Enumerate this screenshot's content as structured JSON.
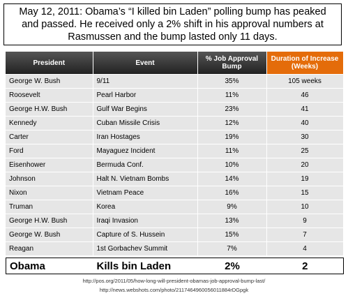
{
  "header": {
    "title": "May 12, 2011: Obama’s “I killed bin Laden” polling bump has peaked and passed. He received only a 2% shift in his approval numbers at Rasmussen and the bump lasted only 11 days."
  },
  "table": {
    "headers": [
      "President",
      "Event",
      "% Job Approval Bump",
      "Duration of Increase (Weeks)"
    ],
    "rows": [
      [
        "George W. Bush",
        "9/11",
        "35%",
        "105 weeks"
      ],
      [
        "Roosevelt",
        "Pearl Harbor",
        "11%",
        "46"
      ],
      [
        "George H.W. Bush",
        "Gulf War Begins",
        "23%",
        "41"
      ],
      [
        "Kennedy",
        "Cuban Missile Crisis",
        "12%",
        "40"
      ],
      [
        "Carter",
        "Iran Hostages",
        "19%",
        "30"
      ],
      [
        "Ford",
        "Mayaguez Incident",
        "11%",
        "25"
      ],
      [
        "Eisenhower",
        "Bermuda Conf.",
        "10%",
        "20"
      ],
      [
        "Johnson",
        "Halt N. Vietnam Bombs",
        "14%",
        "19"
      ],
      [
        "Nixon",
        "Vietnam Peace",
        "16%",
        "15"
      ],
      [
        "Truman",
        "Korea",
        "9%",
        "10"
      ],
      [
        "George H.W. Bush",
        "Iraqi Invasion",
        "13%",
        "9"
      ],
      [
        "George W. Bush",
        "Capture of S. Hussein",
        "15%",
        "7"
      ],
      [
        "Reagan",
        "1st Gorbachev Summit",
        "7%",
        "4"
      ]
    ],
    "highlight_row": [
      "Obama",
      "Kills bin Laden",
      "2%",
      "2"
    ]
  },
  "footer": {
    "lines": [
      "http://pos.org/2011/05/how-long-will-president-obamas-job-approval-bump-last/",
      "http://news.webshots.com/photo/2117464960056011884rDGpgk"
    ]
  }
}
